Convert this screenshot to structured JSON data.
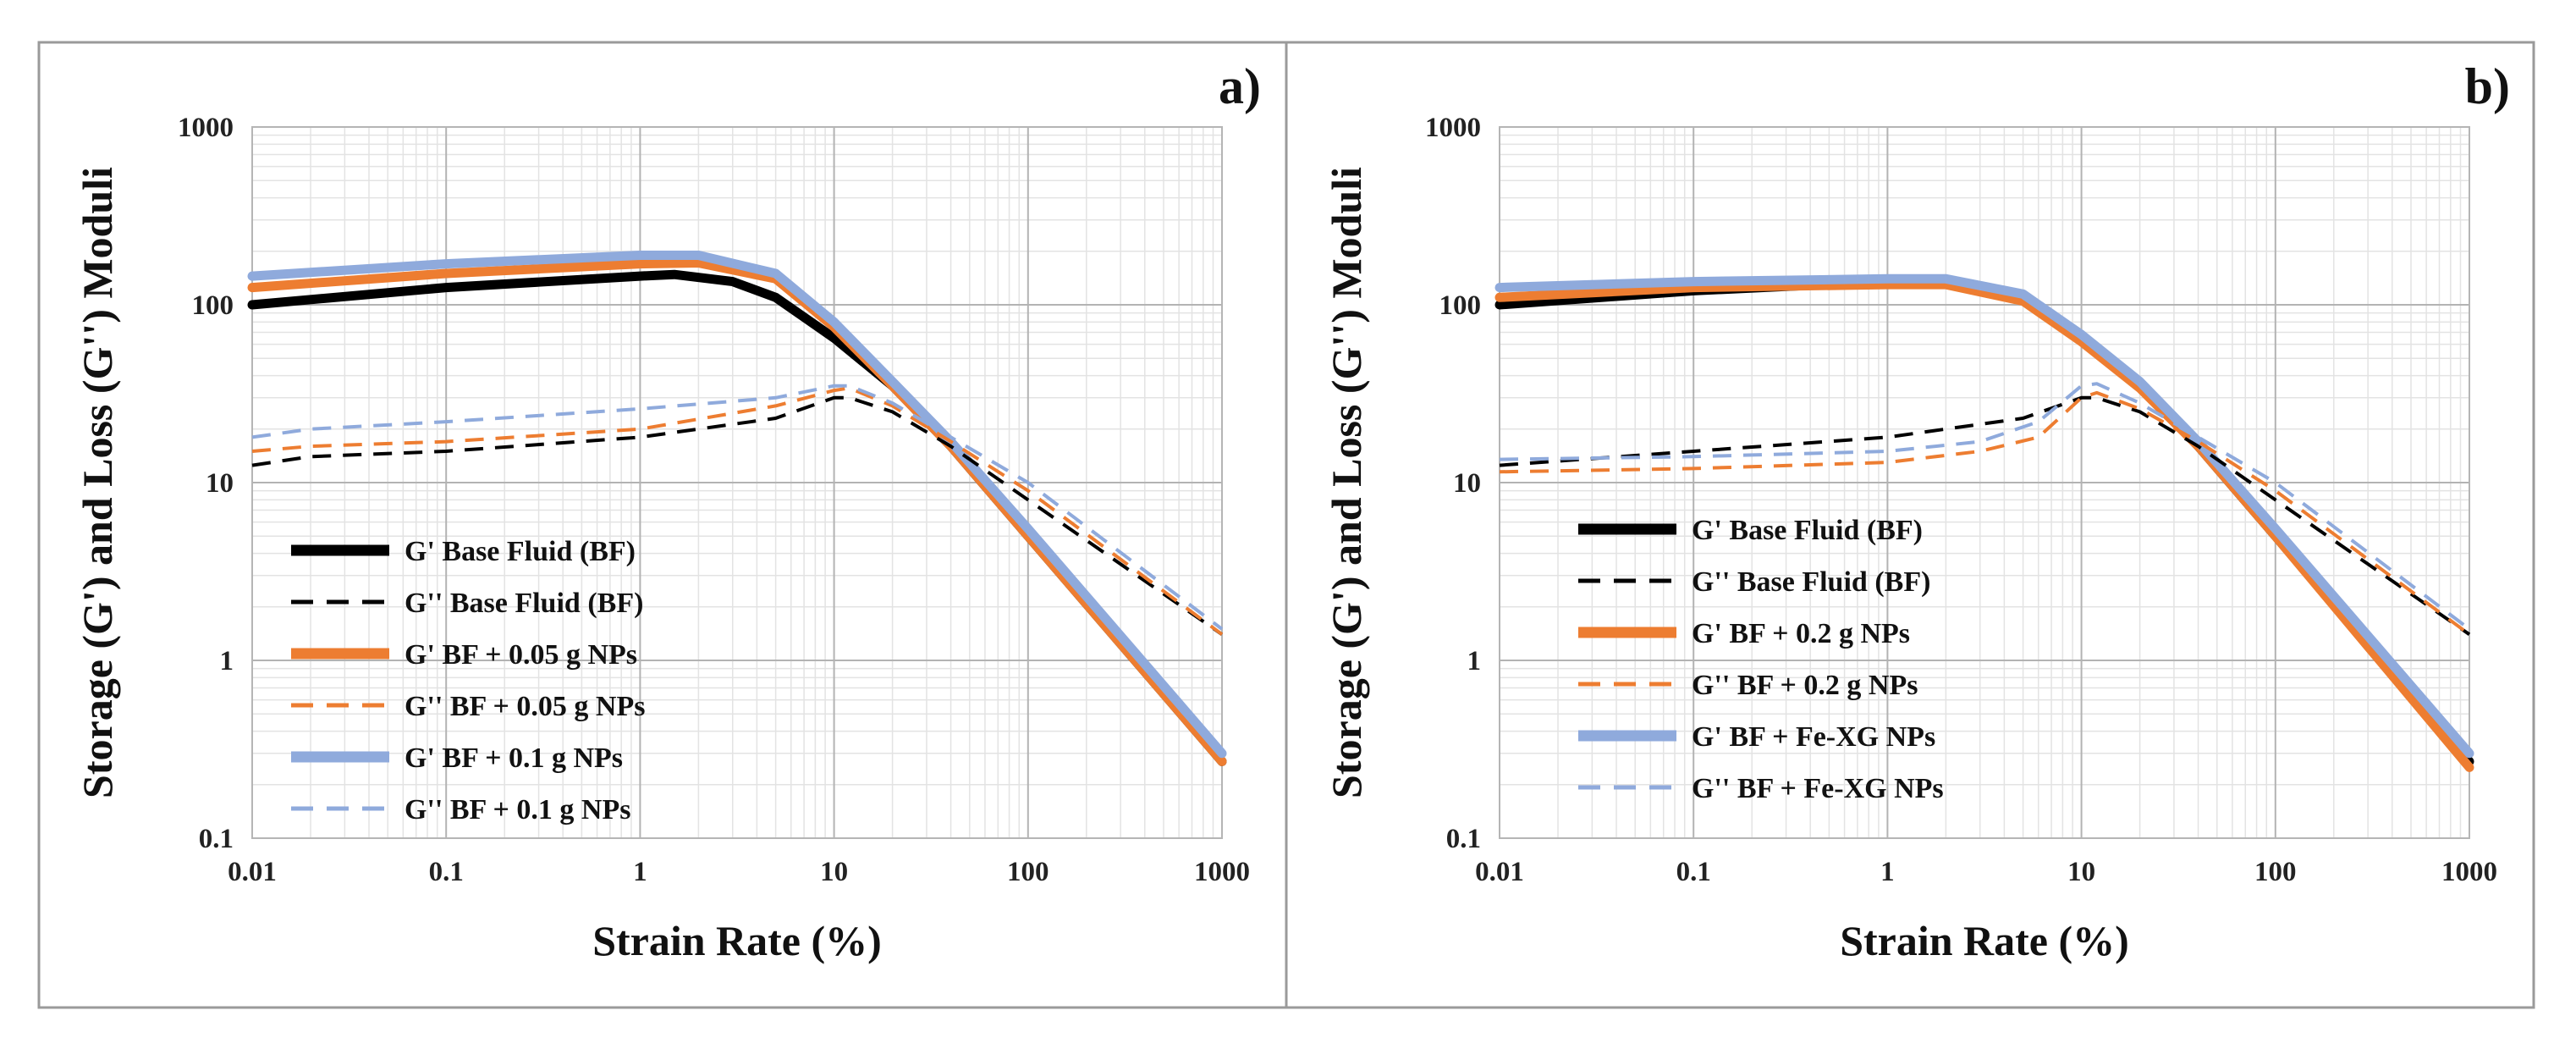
{
  "chart_data": [
    {
      "type": "line",
      "panel_label": "a)",
      "xlabel": "Strain Rate (%)",
      "ylabel": "Storage (G') and Loss (G'') Moduli",
      "x_scale": "log",
      "y_scale": "log",
      "xlim": [
        0.01,
        1000
      ],
      "ylim": [
        0.1,
        1000
      ],
      "x_ticks": [
        "0.01",
        "0.1",
        "1",
        "10",
        "100",
        "1000"
      ],
      "y_ticks": [
        "0.1",
        "1",
        "10",
        "100",
        "1000"
      ],
      "grid": "major and minor",
      "legend_position": "bottom-left",
      "series": [
        {
          "name": "G' Base Fluid (BF)",
          "color": "#000000",
          "style": "solid",
          "x": [
            0.01,
            0.1,
            1,
            1.5,
            3,
            5,
            10,
            20,
            40,
            100,
            1000
          ],
          "y": [
            100,
            125,
            145,
            148,
            135,
            110,
            65,
            35,
            16,
            5,
            0.27
          ]
        },
        {
          "name": "G'' Base Fluid (BF)",
          "color": "#000000",
          "style": "dashed",
          "x": [
            0.01,
            0.02,
            0.1,
            1,
            5,
            10,
            12,
            20,
            40,
            100,
            1000
          ],
          "y": [
            12.5,
            14,
            15,
            18,
            23,
            30,
            30,
            25,
            16,
            8,
            1.4
          ]
        },
        {
          "name": "G' BF + 0.05 g NPs",
          "color": "#ed7d31",
          "style": "solid",
          "x": [
            0.01,
            0.1,
            1,
            2,
            5,
            10,
            20,
            40,
            100,
            1000
          ],
          "y": [
            125,
            150,
            170,
            172,
            140,
            75,
            35,
            16,
            5,
            0.27
          ]
        },
        {
          "name": "G'' BF + 0.05 g NPs",
          "color": "#ed7d31",
          "style": "dashed",
          "x": [
            0.01,
            0.02,
            0.1,
            1,
            5,
            10,
            12,
            20,
            40,
            100,
            1000
          ],
          "y": [
            15,
            16,
            17,
            20,
            27,
            33,
            34,
            27,
            17,
            9,
            1.4
          ]
        },
        {
          "name": "G' BF + 0.1 g NPs",
          "color": "#8faadc",
          "style": "solid",
          "x": [
            0.01,
            0.1,
            1,
            2,
            5,
            10,
            20,
            40,
            100,
            1000
          ],
          "y": [
            145,
            170,
            190,
            190,
            150,
            80,
            37,
            17,
            5.5,
            0.3
          ]
        },
        {
          "name": "G'' BF + 0.1 g NPs",
          "color": "#8faadc",
          "style": "dashed",
          "x": [
            0.01,
            0.02,
            0.1,
            1,
            5,
            10,
            12,
            20,
            40,
            100,
            1000
          ],
          "y": [
            18,
            20,
            22,
            26,
            30,
            35,
            35,
            28,
            18,
            10,
            1.5
          ]
        }
      ]
    },
    {
      "type": "line",
      "panel_label": "b)",
      "xlabel": "Strain Rate (%)",
      "ylabel": "Storage (G') and Loss (G'') Moduli",
      "x_scale": "log",
      "y_scale": "log",
      "xlim": [
        0.01,
        1000
      ],
      "ylim": [
        0.1,
        1000
      ],
      "x_ticks": [
        "0.01",
        "0.1",
        "1",
        "10",
        "100",
        "1000"
      ],
      "y_ticks": [
        "0.1",
        "1",
        "10",
        "100",
        "1000"
      ],
      "grid": "major and minor",
      "legend_position": "bottom-left",
      "series": [
        {
          "name": "G' Base Fluid (BF)",
          "color": "#000000",
          "style": "solid",
          "x": [
            0.01,
            0.1,
            1,
            2,
            5,
            10,
            20,
            40,
            100,
            1000
          ],
          "y": [
            100,
            120,
            135,
            135,
            110,
            65,
            35,
            16,
            5,
            0.27
          ]
        },
        {
          "name": "G'' Base Fluid (BF)",
          "color": "#000000",
          "style": "dashed",
          "x": [
            0.01,
            0.1,
            1,
            5,
            10,
            12,
            20,
            40,
            100,
            1000
          ],
          "y": [
            12.5,
            15,
            18,
            23,
            30,
            30,
            25,
            16,
            8,
            1.4
          ]
        },
        {
          "name": "G' BF + 0.2 g NPs",
          "color": "#ed7d31",
          "style": "solid",
          "x": [
            0.01,
            0.1,
            1,
            2,
            5,
            10,
            20,
            40,
            100,
            1000
          ],
          "y": [
            110,
            125,
            130,
            130,
            105,
            62,
            34,
            16,
            5,
            0.25
          ]
        },
        {
          "name": "G'' BF + 0.2 g NPs",
          "color": "#ed7d31",
          "style": "dashed",
          "x": [
            0.01,
            0.1,
            1,
            3,
            6,
            10,
            12,
            20,
            40,
            100,
            1000
          ],
          "y": [
            11.5,
            12,
            13,
            15,
            18,
            30,
            32,
            26,
            17,
            9,
            1.4
          ]
        },
        {
          "name": "G' BF + Fe-XG NPs",
          "color": "#8faadc",
          "style": "solid",
          "x": [
            0.01,
            0.1,
            1,
            2,
            5,
            10,
            20,
            40,
            100,
            1000
          ],
          "y": [
            125,
            135,
            140,
            140,
            115,
            68,
            37,
            17,
            5.5,
            0.3
          ]
        },
        {
          "name": "G'' BF + Fe-XG NPs",
          "color": "#8faadc",
          "style": "dashed",
          "x": [
            0.01,
            0.1,
            1,
            3,
            6,
            10,
            12,
            20,
            40,
            100,
            1000
          ],
          "y": [
            13.5,
            14,
            15,
            17,
            22,
            35,
            36,
            28,
            18,
            10,
            1.5
          ]
        }
      ]
    }
  ]
}
